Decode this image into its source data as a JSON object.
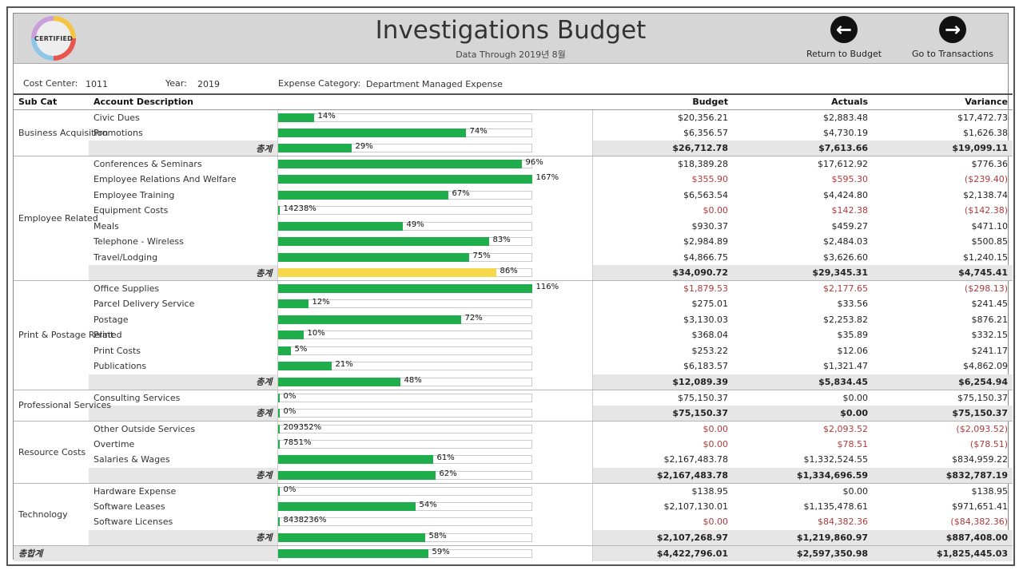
{
  "header": {
    "title": "Investigations Budget",
    "subtitle": "Data Through 2019년 8월",
    "logo_text": "CERTIFIED",
    "return_label": "Return to Budget",
    "goto_label": "Go to Transactions"
  },
  "filters": {
    "cost_center_label": "Cost Center:",
    "cost_center_value": "1011",
    "year_label": "Year:",
    "year_value": "2019",
    "category_label": "Expense Category:",
    "category_value": "Department Managed Expense"
  },
  "columns": {
    "subcat": "Sub Cat",
    "account": "Account Description",
    "budget": "Budget",
    "actuals": "Actuals",
    "variance": "Variance"
  },
  "total_label": "총계",
  "grand_total_label": "총합계",
  "groups": [
    {
      "subcat": "Business Acquisition",
      "rows": [
        {
          "account": "Civic Dues",
          "pct": "14%",
          "fill": 0.14,
          "budget": "$20,356.21",
          "actuals": "$2,883.48",
          "variance": "$17,472.73"
        },
        {
          "account": "Promotions",
          "pct": "74%",
          "fill": 0.74,
          "budget": "$6,356.57",
          "actuals": "$4,730.19",
          "variance": "$1,626.38"
        }
      ],
      "total": {
        "pct": "29%",
        "fill": 0.29,
        "budget": "$26,712.78",
        "actuals": "$7,613.66",
        "variance": "$19,099.11"
      }
    },
    {
      "subcat": "Employee Related",
      "rows": [
        {
          "account": "Conferences & Seminars",
          "pct": "96%",
          "fill": 0.96,
          "budget": "$18,389.28",
          "actuals": "$17,612.92",
          "variance": "$776.36"
        },
        {
          "account": "Employee Relations And Welfare",
          "pct": "167%",
          "fill": 1.0,
          "budget": "$355.90",
          "actuals": "$595.30",
          "variance": "($239.40)",
          "neg": true
        },
        {
          "account": "Employee Training",
          "pct": "67%",
          "fill": 0.67,
          "budget": "$6,563.54",
          "actuals": "$4,424.80",
          "variance": "$2,138.74"
        },
        {
          "account": "Equipment Costs",
          "pct": "14238%",
          "fill": 0,
          "budget": "$0.00",
          "actuals": "$142.38",
          "variance": "($142.38)",
          "neg": true
        },
        {
          "account": "Meals",
          "pct": "49%",
          "fill": 0.49,
          "budget": "$930.37",
          "actuals": "$459.27",
          "variance": "$471.10"
        },
        {
          "account": "Telephone - Wireless",
          "pct": "83%",
          "fill": 0.83,
          "budget": "$2,984.89",
          "actuals": "$2,484.03",
          "variance": "$500.85"
        },
        {
          "account": "Travel/Lodging",
          "pct": "75%",
          "fill": 0.75,
          "budget": "$4,866.75",
          "actuals": "$3,626.60",
          "variance": "$1,240.15"
        }
      ],
      "total": {
        "pct": "86%",
        "fill": 0.86,
        "highlight": true,
        "budget": "$34,090.72",
        "actuals": "$29,345.31",
        "variance": "$4,745.41"
      }
    },
    {
      "subcat": "Print & Postage Related",
      "rows": [
        {
          "account": "Office Supplies",
          "pct": "116%",
          "fill": 1.0,
          "budget": "$1,879.53",
          "actuals": "$2,177.65",
          "variance": "($298.13)",
          "neg": true
        },
        {
          "account": "Parcel Delivery Service",
          "pct": "12%",
          "fill": 0.12,
          "budget": "$275.01",
          "actuals": "$33.56",
          "variance": "$241.45"
        },
        {
          "account": "Postage",
          "pct": "72%",
          "fill": 0.72,
          "budget": "$3,130.03",
          "actuals": "$2,253.82",
          "variance": "$876.21"
        },
        {
          "account": "Print",
          "pct": "10%",
          "fill": 0.1,
          "budget": "$368.04",
          "actuals": "$35.89",
          "variance": "$332.15"
        },
        {
          "account": "Print Costs",
          "pct": "5%",
          "fill": 0.05,
          "budget": "$253.22",
          "actuals": "$12.06",
          "variance": "$241.17"
        },
        {
          "account": "Publications",
          "pct": "21%",
          "fill": 0.21,
          "budget": "$6,183.57",
          "actuals": "$1,321.47",
          "variance": "$4,862.09"
        }
      ],
      "total": {
        "pct": "48%",
        "fill": 0.48,
        "budget": "$12,089.39",
        "actuals": "$5,834.45",
        "variance": "$6,254.94"
      }
    },
    {
      "subcat": "Professional Services",
      "rows": [
        {
          "account": "Consulting Services",
          "pct": "0%",
          "fill": 0,
          "budget": "$75,150.37",
          "actuals": "$0.00",
          "variance": "$75,150.37"
        }
      ],
      "total": {
        "pct": "0%",
        "fill": 0,
        "budget": "$75,150.37",
        "actuals": "$0.00",
        "variance": "$75,150.37"
      }
    },
    {
      "subcat": "Resource Costs",
      "rows": [
        {
          "account": "Other Outside Services",
          "pct": "209352%",
          "fill": 0,
          "budget": "$0.00",
          "actuals": "$2,093.52",
          "variance": "($2,093.52)",
          "neg": true
        },
        {
          "account": "Overtime",
          "pct": "7851%",
          "fill": 0,
          "budget": "$0.00",
          "actuals": "$78.51",
          "variance": "($78.51)",
          "neg": true
        },
        {
          "account": "Salaries & Wages",
          "pct": "61%",
          "fill": 0.61,
          "budget": "$2,167,483.78",
          "actuals": "$1,332,524.55",
          "variance": "$834,959.22"
        }
      ],
      "total": {
        "pct": "62%",
        "fill": 0.62,
        "budget": "$2,167,483.78",
        "actuals": "$1,334,696.59",
        "variance": "$832,787.19"
      }
    },
    {
      "subcat": "Technology",
      "rows": [
        {
          "account": "Hardware Expense",
          "pct": "0%",
          "fill": 0,
          "budget": "$138.95",
          "actuals": "$0.00",
          "variance": "$138.95"
        },
        {
          "account": "Software Leases",
          "pct": "54%",
          "fill": 0.54,
          "budget": "$2,107,130.01",
          "actuals": "$1,135,478.61",
          "variance": "$971,651.41"
        },
        {
          "account": "Software Licenses",
          "pct": "8438236%",
          "fill": 0,
          "budget": "$0.00",
          "actuals": "$84,382.36",
          "variance": "($84,382.36)",
          "neg": true
        }
      ],
      "total": {
        "pct": "58%",
        "fill": 0.58,
        "budget": "$2,107,268.97",
        "actuals": "$1,219,860.97",
        "variance": "$887,408.00"
      }
    }
  ],
  "grand_total": {
    "pct": "59%",
    "fill": 0.59,
    "budget": "$4,422,796.01",
    "actuals": "$2,597,350.98",
    "variance": "$1,825,445.03"
  },
  "colors": {
    "bar": "#1fae4b",
    "highlight": "#f5d94a",
    "negative": "#b03a3a"
  }
}
